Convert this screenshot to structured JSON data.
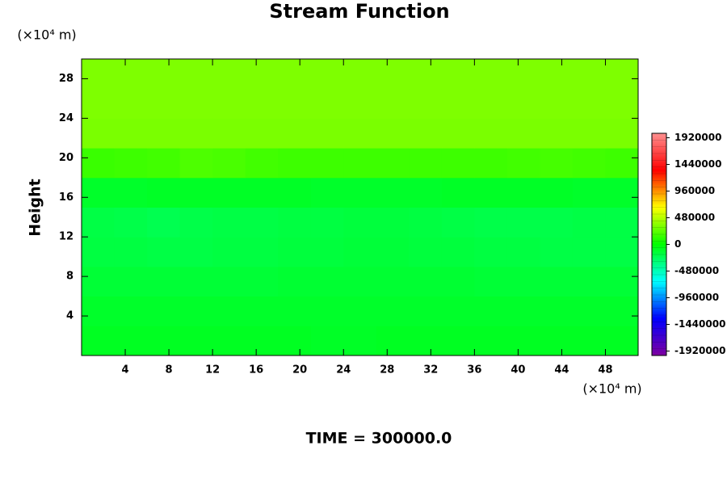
{
  "chart_data": {
    "type": "contour",
    "title": "Stream Function",
    "ylabel": "Height",
    "y_unit": "(×10⁴ m)",
    "x_unit": "(×10⁴ m)",
    "footer": "TIME = 300000.0",
    "xlim": [
      0,
      51
    ],
    "ylim": [
      0,
      30
    ],
    "xticks": [
      4,
      8,
      12,
      16,
      20,
      24,
      28,
      32,
      36,
      40,
      44,
      48
    ],
    "yticks": [
      4,
      8,
      12,
      16,
      20,
      24,
      28
    ],
    "x": [
      1.5,
      4.5,
      7.5,
      10.5,
      13.5,
      16.5,
      19.5,
      22.5,
      25.5,
      28.5,
      31.5,
      34.5,
      37.5,
      40.5,
      43.5,
      46.5,
      49.5
    ],
    "y": [
      1.5,
      4.5,
      7.5,
      10.5,
      13.5,
      16.5,
      19.5,
      22.5,
      25.5,
      28.5
    ],
    "z": [
      [
        -90000,
        -90000,
        -90000,
        -90000,
        -90000,
        -90000,
        -90000,
        -100000,
        -100000,
        -90000,
        -90000,
        -90000,
        -90000,
        -90000,
        -90000,
        -90000,
        -90000
      ],
      [
        -110000,
        -110000,
        -110000,
        -110000,
        -110000,
        -110000,
        -110000,
        -110000,
        -110000,
        -110000,
        -110000,
        -110000,
        -110000,
        -110000,
        -110000,
        -110000,
        -110000
      ],
      [
        -140000,
        -140000,
        -140000,
        -140000,
        -140000,
        -140000,
        -130000,
        -130000,
        -130000,
        -130000,
        -130000,
        -130000,
        -140000,
        -140000,
        -140000,
        -140000,
        -140000
      ],
      [
        -170000,
        -170000,
        -180000,
        -180000,
        -170000,
        -170000,
        -160000,
        -160000,
        -150000,
        -150000,
        -160000,
        -160000,
        -170000,
        -170000,
        -180000,
        -180000,
        -180000
      ],
      [
        -180000,
        -190000,
        -210000,
        -190000,
        -180000,
        -180000,
        -170000,
        -170000,
        -160000,
        -160000,
        -170000,
        -180000,
        -190000,
        -190000,
        -190000,
        -180000,
        -180000
      ],
      [
        -110000,
        -110000,
        -100000,
        -100000,
        -100000,
        -100000,
        -100000,
        -110000,
        -110000,
        -110000,
        -110000,
        -100000,
        -100000,
        -100000,
        -100000,
        -110000,
        -110000
      ],
      [
        150000,
        160000,
        170000,
        200000,
        190000,
        170000,
        160000,
        160000,
        160000,
        160000,
        160000,
        160000,
        160000,
        170000,
        180000,
        170000,
        160000
      ],
      [
        320000,
        320000,
        320000,
        320000,
        320000,
        320000,
        320000,
        320000,
        320000,
        320000,
        320000,
        320000,
        320000,
        320000,
        320000,
        320000,
        320000
      ],
      [
        330000,
        330000,
        330000,
        330000,
        330000,
        330000,
        330000,
        330000,
        330000,
        330000,
        330000,
        330000,
        330000,
        330000,
        330000,
        330000,
        330000
      ],
      [
        330000,
        330000,
        330000,
        330000,
        330000,
        330000,
        330000,
        330000,
        330000,
        330000,
        330000,
        330000,
        330000,
        330000,
        330000,
        330000,
        330000
      ]
    ],
    "colormap": [
      "#7f00a0",
      "#0000ff",
      "#00ffff",
      "#00ff00",
      "#ffff00",
      "#ff0000",
      "#ff9090"
    ],
    "colorbar": {
      "lim": [
        -2000000,
        2000000
      ],
      "ticks": [
        1920000,
        1440000,
        960000,
        480000,
        0,
        -480000,
        -960000,
        -1440000,
        -1920000
      ]
    }
  }
}
